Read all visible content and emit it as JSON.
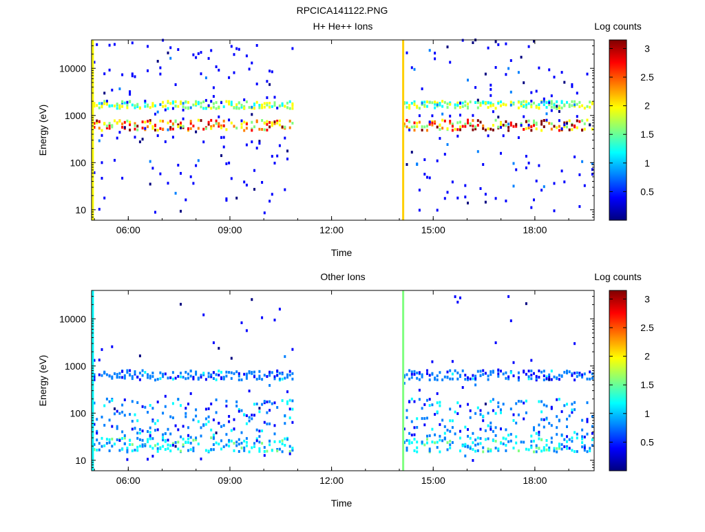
{
  "figure_title": "RPCICA141122.PNG",
  "colormap": [
    "#00007f",
    "#0000ff",
    "#0080ff",
    "#00ffff",
    "#80ff80",
    "#ffff00",
    "#ff8000",
    "#ff0000",
    "#7f0000"
  ],
  "chart_data": [
    {
      "type": "heatmap",
      "title": "H+ He++ Ions",
      "xlabel": "Time",
      "ylabel": "Energy (eV)",
      "y_scale": "log",
      "xlim": [
        "04:55",
        "19:45"
      ],
      "ylim": [
        6,
        40000
      ],
      "x_ticks": [
        "06:00",
        "09:00",
        "12:00",
        "15:00",
        "18:00"
      ],
      "y_ticks": [
        10,
        100,
        1000,
        10000
      ],
      "y_tick_labels": [
        "10",
        "100",
        "1000",
        "10000"
      ],
      "data_gap": [
        "10:50",
        "14:05"
      ],
      "colorbar": {
        "label": "Log counts",
        "range": [
          0,
          3.15
        ],
        "ticks": [
          0.5,
          1,
          1.5,
          2,
          2.5,
          3
        ],
        "tick_labels": [
          "0.5",
          "1",
          "1.5",
          "2",
          "2.5",
          "3"
        ]
      },
      "bands": [
        {
          "energy_min": 480,
          "energy_max": 800,
          "level": 2.6
        },
        {
          "energy_min": 1400,
          "energy_max": 2000,
          "level": 1.7
        }
      ]
    },
    {
      "type": "heatmap",
      "title": "Other Ions",
      "xlabel": "Time",
      "ylabel": "Energy (eV)",
      "y_scale": "log",
      "xlim": [
        "04:55",
        "19:45"
      ],
      "ylim": [
        6,
        40000
      ],
      "x_ticks": [
        "06:00",
        "09:00",
        "12:00",
        "15:00",
        "18:00"
      ],
      "y_ticks": [
        10,
        100,
        1000,
        10000
      ],
      "y_tick_labels": [
        "10",
        "100",
        "1000",
        "10000"
      ],
      "data_gap": [
        "10:50",
        "14:05"
      ],
      "colorbar": {
        "label": "Log counts",
        "range": [
          0,
          3.15
        ],
        "ticks": [
          0.5,
          1,
          1.5,
          2,
          2.5,
          3
        ],
        "tick_labels": [
          "0.5",
          "1",
          "1.5",
          "2",
          "2.5",
          "3"
        ]
      },
      "bands": [
        {
          "energy_min": 500,
          "energy_max": 800,
          "level": 0.8
        },
        {
          "energy_min": 15,
          "energy_max": 30,
          "level": 1.2
        },
        {
          "energy_min": 30,
          "energy_max": 200,
          "level": 0.9
        }
      ]
    }
  ]
}
